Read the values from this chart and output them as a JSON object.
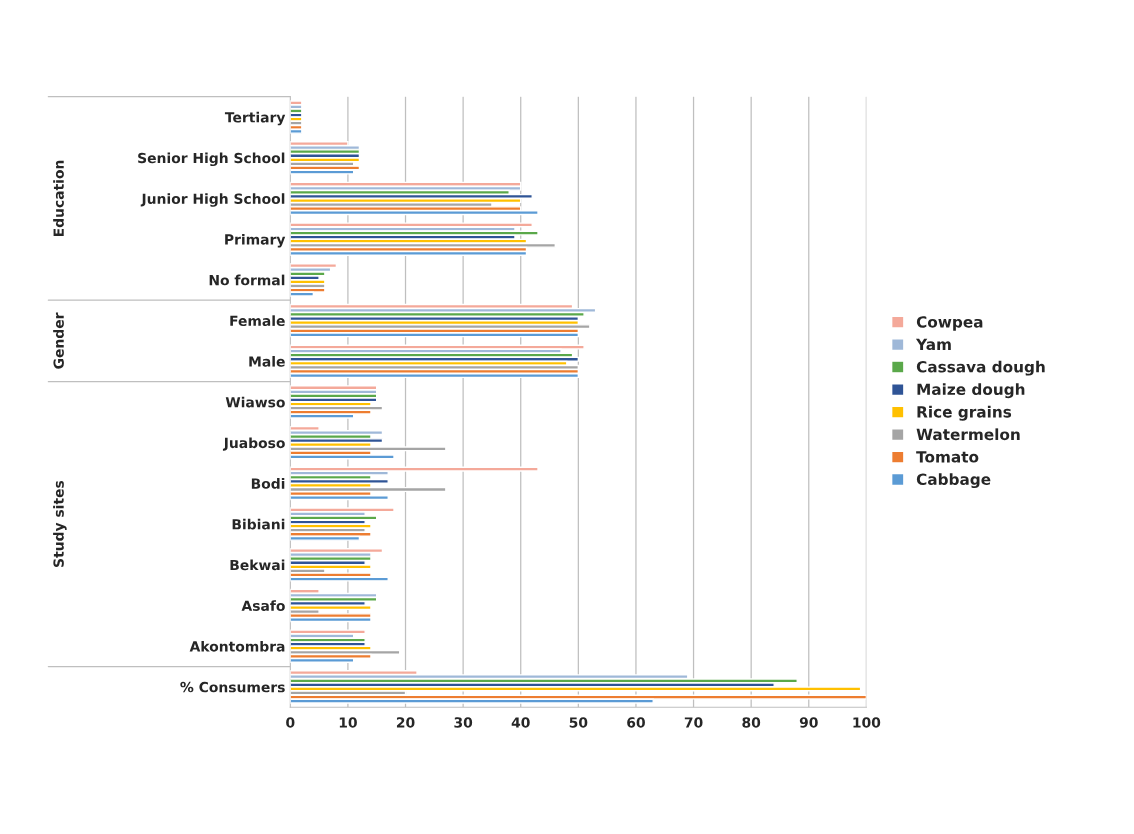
{
  "chart_data": {
    "type": "bar",
    "orientation": "horizontal",
    "categories": [
      "Tertiary",
      "Senior High School",
      "Junior High School",
      "Primary",
      "No formal",
      "Female",
      "Male",
      "Wiawso",
      "Juaboso",
      "Bodi",
      "Bibiani",
      "Bekwai",
      "Asafo",
      "Akontombra",
      "% Consumers"
    ],
    "series": [
      {
        "name": "Cowpea",
        "color": "#f4a99a",
        "values": [
          2,
          10,
          40,
          42,
          8,
          49,
          51,
          15,
          5,
          43,
          18,
          16,
          5,
          13,
          22
        ]
      },
      {
        "name": "Yam",
        "color": "#9fb8d8",
        "values": [
          2,
          12,
          40,
          39,
          7,
          53,
          47,
          15,
          16,
          17,
          13,
          14,
          15,
          11,
          69
        ]
      },
      {
        "name": "Cassava dough",
        "color": "#5aa84a",
        "values": [
          2,
          12,
          38,
          43,
          6,
          51,
          49,
          15,
          14,
          14,
          15,
          14,
          15,
          13,
          88
        ]
      },
      {
        "name": "Maize dough",
        "color": "#2f5496",
        "values": [
          2,
          12,
          42,
          39,
          5,
          50,
          50,
          15,
          16,
          17,
          13,
          13,
          13,
          13,
          84
        ]
      },
      {
        "name": "Rice grains",
        "color": "#ffc000",
        "values": [
          2,
          12,
          40,
          41,
          6,
          50,
          48,
          14,
          14,
          14,
          14,
          14,
          14,
          14,
          99
        ]
      },
      {
        "name": "Watermelon",
        "color": "#a5a5a5",
        "values": [
          2,
          11,
          35,
          46,
          6,
          52,
          50,
          16,
          27,
          27,
          13,
          6,
          5,
          19,
          20
        ]
      },
      {
        "name": "Tomato",
        "color": "#ed7d31",
        "values": [
          2,
          12,
          40,
          41,
          6,
          50,
          50,
          14,
          14,
          14,
          14,
          14,
          14,
          14,
          100
        ]
      },
      {
        "name": "Cabbage",
        "color": "#5b9bd5",
        "values": [
          2,
          11,
          43,
          41,
          4,
          50,
          50,
          11,
          18,
          17,
          12,
          17,
          14,
          11,
          63
        ]
      }
    ],
    "xlim": [
      0,
      100
    ],
    "xticks": [
      0,
      10,
      20,
      30,
      40,
      50,
      60,
      70,
      80,
      90,
      100
    ],
    "grid": "x",
    "legend": "right",
    "annotations": [
      "Education",
      "Gender",
      "Study sites"
    ]
  }
}
